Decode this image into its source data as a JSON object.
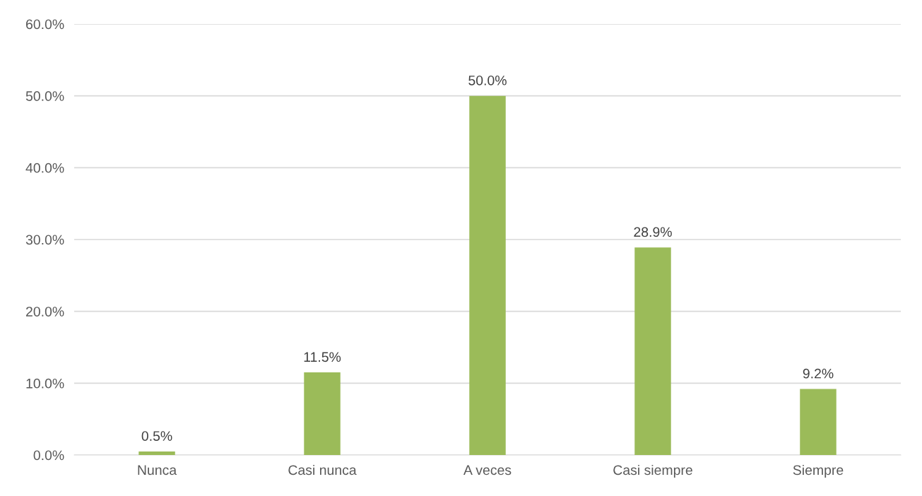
{
  "chart_data": {
    "type": "bar",
    "categories": [
      "Nunca",
      "Casi nunca",
      "A veces",
      "Casi siempre",
      "Siempre"
    ],
    "values": [
      0.5,
      11.5,
      50.0,
      28.9,
      9.2
    ],
    "color": "#9bbb59",
    "value_labels": [
      "0.5%",
      "11.5%",
      "50.0%",
      "28.9%",
      "9.2%"
    ],
    "ylim": [
      0,
      60
    ],
    "yticks": [
      {
        "value": 0,
        "label": "0.0%"
      },
      {
        "value": 10,
        "label": "10.0%"
      },
      {
        "value": 20,
        "label": "20.0%"
      },
      {
        "value": 30,
        "label": "30.0%"
      },
      {
        "value": 40,
        "label": "40.0%"
      },
      {
        "value": 50,
        "label": "50.0%"
      },
      {
        "value": 60,
        "label": "60.0%"
      }
    ],
    "grid": "y",
    "legend": false
  }
}
